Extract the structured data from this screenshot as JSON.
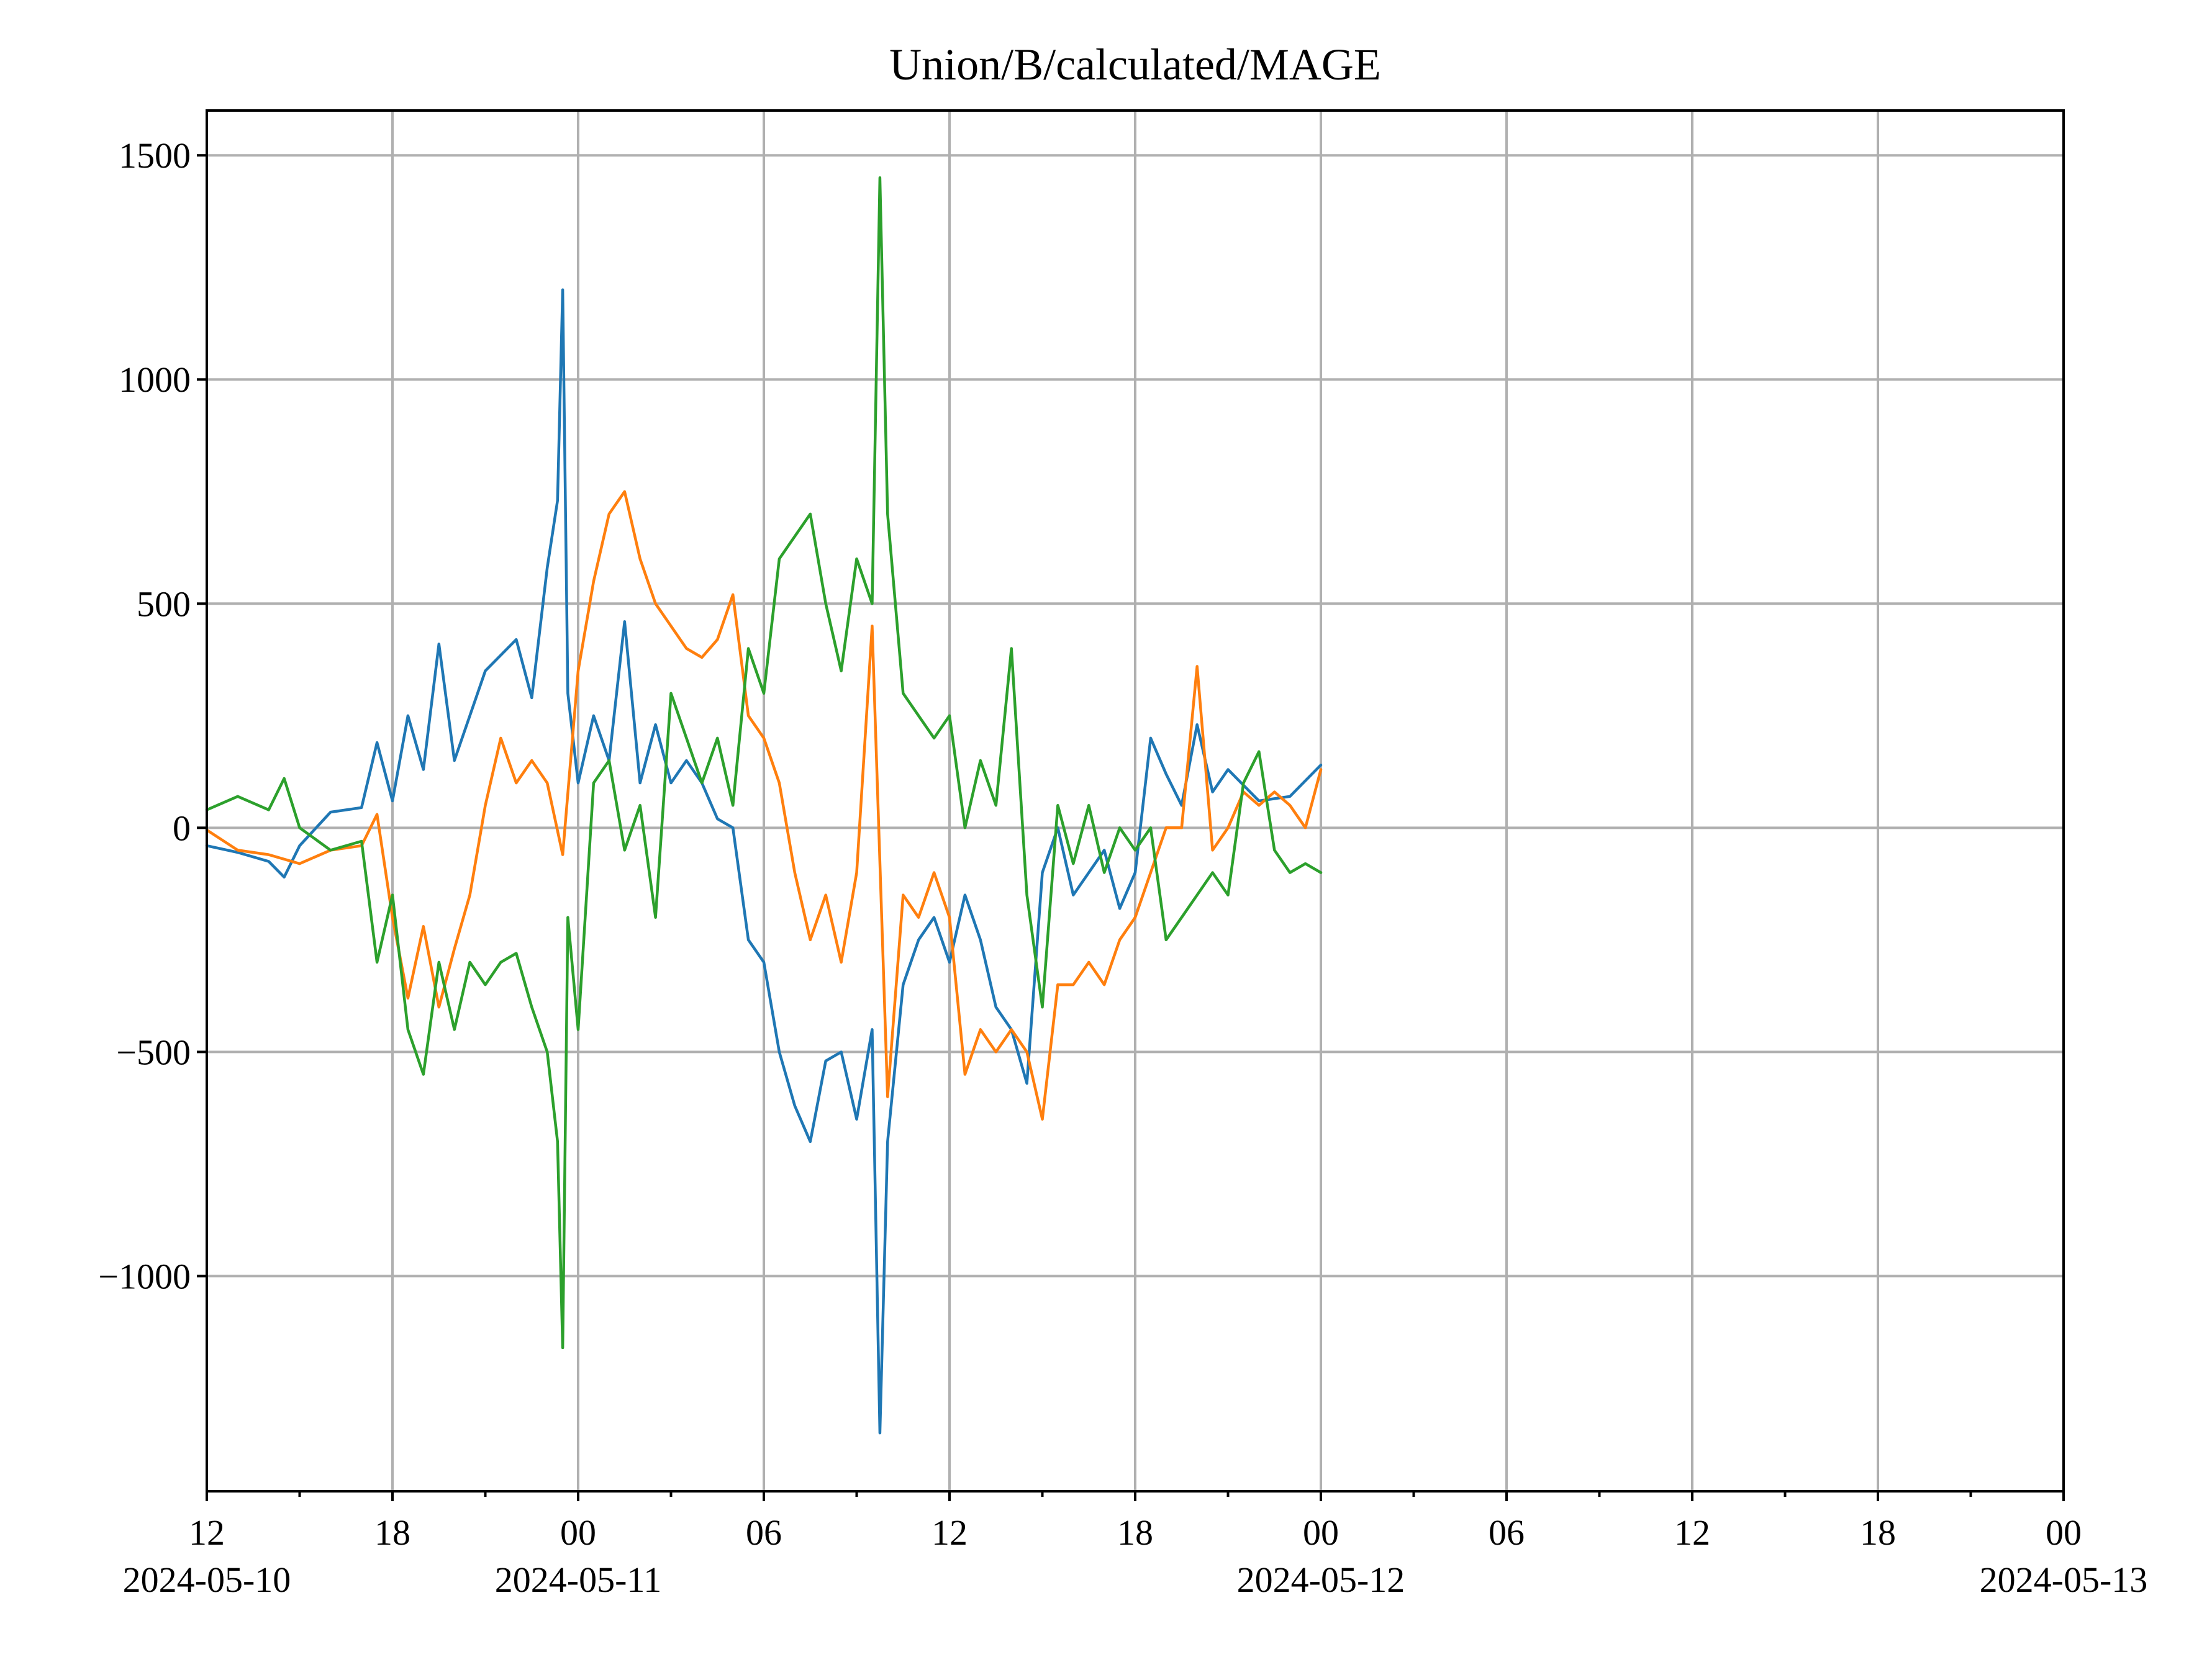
{
  "chart_data": {
    "type": "line",
    "title": "Union/B/calculated/MAGE",
    "xlabel": "",
    "ylabel": "",
    "xlim": [
      "2024-05-10 12:00",
      "2024-05-13 00:00"
    ],
    "ylim": [
      -1480,
      1600
    ],
    "grid": true,
    "x_ticks": [
      {
        "t": "2024-05-10 12:00",
        "label": "12",
        "date_label": "2024-05-10"
      },
      {
        "t": "2024-05-10 18:00",
        "label": "18",
        "date_label": ""
      },
      {
        "t": "2024-05-11 00:00",
        "label": "00",
        "date_label": "2024-05-11"
      },
      {
        "t": "2024-05-11 06:00",
        "label": "06",
        "date_label": ""
      },
      {
        "t": "2024-05-11 12:00",
        "label": "12",
        "date_label": ""
      },
      {
        "t": "2024-05-11 18:00",
        "label": "18",
        "date_label": ""
      },
      {
        "t": "2024-05-12 00:00",
        "label": "00",
        "date_label": "2024-05-12"
      },
      {
        "t": "2024-05-12 06:00",
        "label": "06",
        "date_label": ""
      },
      {
        "t": "2024-05-12 12:00",
        "label": "12",
        "date_label": ""
      },
      {
        "t": "2024-05-12 18:00",
        "label": "18",
        "date_label": ""
      },
      {
        "t": "2024-05-13 00:00",
        "label": "00",
        "date_label": "2024-05-13"
      }
    ],
    "x_minor_ticks": [
      "2024-05-10 15:00",
      "2024-05-10 21:00",
      "2024-05-11 03:00",
      "2024-05-11 09:00",
      "2024-05-11 15:00",
      "2024-05-11 21:00",
      "2024-05-12 03:00",
      "2024-05-12 09:00",
      "2024-05-12 15:00",
      "2024-05-12 21:00"
    ],
    "y_ticks": [
      {
        "v": 1500,
        "label": "1500"
      },
      {
        "v": 1000,
        "label": "1000"
      },
      {
        "v": 500,
        "label": "500"
      },
      {
        "v": 0,
        "label": "0"
      },
      {
        "v": -500,
        "label": "−500"
      },
      {
        "v": -1000,
        "label": "−1000"
      }
    ],
    "series": [
      {
        "color": "#1f77b4",
        "points": [
          [
            "2024-05-10 12:00",
            -40
          ],
          [
            "2024-05-10 13:00",
            -55
          ],
          [
            "2024-05-10 14:00",
            -75
          ],
          [
            "2024-05-10 14:30",
            -110
          ],
          [
            "2024-05-10 15:00",
            -40
          ],
          [
            "2024-05-10 16:00",
            35
          ],
          [
            "2024-05-10 17:00",
            45
          ],
          [
            "2024-05-10 17:30",
            190
          ],
          [
            "2024-05-10 18:00",
            60
          ],
          [
            "2024-05-10 18:30",
            250
          ],
          [
            "2024-05-10 19:00",
            130
          ],
          [
            "2024-05-10 19:30",
            410
          ],
          [
            "2024-05-10 20:00",
            150
          ],
          [
            "2024-05-10 20:30",
            250
          ],
          [
            "2024-05-10 21:00",
            350
          ],
          [
            "2024-05-10 22:00",
            420
          ],
          [
            "2024-05-10 22:30",
            290
          ],
          [
            "2024-05-10 23:00",
            580
          ],
          [
            "2024-05-10 23:20",
            730
          ],
          [
            "2024-05-10 23:30",
            1200
          ],
          [
            "2024-05-10 23:40",
            300
          ],
          [
            "2024-05-11 00:00",
            100
          ],
          [
            "2024-05-11 00:30",
            250
          ],
          [
            "2024-05-11 01:00",
            150
          ],
          [
            "2024-05-11 01:30",
            460
          ],
          [
            "2024-05-11 02:00",
            100
          ],
          [
            "2024-05-11 02:30",
            230
          ],
          [
            "2024-05-11 03:00",
            100
          ],
          [
            "2024-05-11 03:30",
            150
          ],
          [
            "2024-05-11 04:00",
            100
          ],
          [
            "2024-05-11 04:30",
            20
          ],
          [
            "2024-05-11 05:00",
            0
          ],
          [
            "2024-05-11 05:30",
            -250
          ],
          [
            "2024-05-11 06:00",
            -300
          ],
          [
            "2024-05-11 06:30",
            -500
          ],
          [
            "2024-05-11 07:00",
            -620
          ],
          [
            "2024-05-11 07:30",
            -700
          ],
          [
            "2024-05-11 08:00",
            -520
          ],
          [
            "2024-05-11 08:30",
            -500
          ],
          [
            "2024-05-11 09:00",
            -650
          ],
          [
            "2024-05-11 09:30",
            -450
          ],
          [
            "2024-05-11 09:45",
            -1350
          ],
          [
            "2024-05-11 10:00",
            -700
          ],
          [
            "2024-05-11 10:30",
            -350
          ],
          [
            "2024-05-11 11:00",
            -250
          ],
          [
            "2024-05-11 11:30",
            -200
          ],
          [
            "2024-05-11 12:00",
            -300
          ],
          [
            "2024-05-11 12:30",
            -150
          ],
          [
            "2024-05-11 13:00",
            -250
          ],
          [
            "2024-05-11 13:30",
            -400
          ],
          [
            "2024-05-11 14:00",
            -450
          ],
          [
            "2024-05-11 14:30",
            -570
          ],
          [
            "2024-05-11 15:00",
            -100
          ],
          [
            "2024-05-11 15:30",
            0
          ],
          [
            "2024-05-11 16:00",
            -150
          ],
          [
            "2024-05-11 16:30",
            -100
          ],
          [
            "2024-05-11 17:00",
            -50
          ],
          [
            "2024-05-11 17:30",
            -180
          ],
          [
            "2024-05-11 18:00",
            -100
          ],
          [
            "2024-05-11 18:30",
            200
          ],
          [
            "2024-05-11 19:00",
            120
          ],
          [
            "2024-05-11 19:30",
            50
          ],
          [
            "2024-05-11 20:00",
            230
          ],
          [
            "2024-05-11 20:30",
            80
          ],
          [
            "2024-05-11 21:00",
            130
          ],
          [
            "2024-05-11 22:00",
            60
          ],
          [
            "2024-05-11 23:00",
            70
          ],
          [
            "2024-05-12 00:00",
            140
          ]
        ]
      },
      {
        "color": "#ff7f0e",
        "points": [
          [
            "2024-05-10 12:00",
            -5
          ],
          [
            "2024-05-10 13:00",
            -50
          ],
          [
            "2024-05-10 14:00",
            -60
          ],
          [
            "2024-05-10 15:00",
            -80
          ],
          [
            "2024-05-10 16:00",
            -50
          ],
          [
            "2024-05-10 17:00",
            -40
          ],
          [
            "2024-05-10 17:30",
            30
          ],
          [
            "2024-05-10 18:00",
            -200
          ],
          [
            "2024-05-10 18:30",
            -380
          ],
          [
            "2024-05-10 19:00",
            -220
          ],
          [
            "2024-05-10 19:30",
            -400
          ],
          [
            "2024-05-10 20:00",
            -270
          ],
          [
            "2024-05-10 20:30",
            -150
          ],
          [
            "2024-05-10 21:00",
            50
          ],
          [
            "2024-05-10 21:30",
            200
          ],
          [
            "2024-05-10 22:00",
            100
          ],
          [
            "2024-05-10 22:30",
            150
          ],
          [
            "2024-05-10 23:00",
            100
          ],
          [
            "2024-05-10 23:30",
            -60
          ],
          [
            "2024-05-11 00:00",
            350
          ],
          [
            "2024-05-11 00:30",
            550
          ],
          [
            "2024-05-11 01:00",
            700
          ],
          [
            "2024-05-11 01:30",
            750
          ],
          [
            "2024-05-11 02:00",
            600
          ],
          [
            "2024-05-11 02:30",
            500
          ],
          [
            "2024-05-11 03:00",
            450
          ],
          [
            "2024-05-11 03:30",
            400
          ],
          [
            "2024-05-11 04:00",
            380
          ],
          [
            "2024-05-11 04:30",
            420
          ],
          [
            "2024-05-11 05:00",
            520
          ],
          [
            "2024-05-11 05:30",
            250
          ],
          [
            "2024-05-11 06:00",
            200
          ],
          [
            "2024-05-11 06:30",
            100
          ],
          [
            "2024-05-11 07:00",
            -100
          ],
          [
            "2024-05-11 07:30",
            -250
          ],
          [
            "2024-05-11 08:00",
            -150
          ],
          [
            "2024-05-11 08:30",
            -300
          ],
          [
            "2024-05-11 09:00",
            -100
          ],
          [
            "2024-05-11 09:30",
            450
          ],
          [
            "2024-05-11 10:00",
            -600
          ],
          [
            "2024-05-11 10:30",
            -150
          ],
          [
            "2024-05-11 11:00",
            -200
          ],
          [
            "2024-05-11 11:30",
            -100
          ],
          [
            "2024-05-11 12:00",
            -200
          ],
          [
            "2024-05-11 12:30",
            -550
          ],
          [
            "2024-05-11 13:00",
            -450
          ],
          [
            "2024-05-11 13:30",
            -500
          ],
          [
            "2024-05-11 14:00",
            -450
          ],
          [
            "2024-05-11 14:30",
            -500
          ],
          [
            "2024-05-11 15:00",
            -650
          ],
          [
            "2024-05-11 15:30",
            -350
          ],
          [
            "2024-05-11 16:00",
            -350
          ],
          [
            "2024-05-11 16:30",
            -300
          ],
          [
            "2024-05-11 17:00",
            -350
          ],
          [
            "2024-05-11 17:30",
            -250
          ],
          [
            "2024-05-11 18:00",
            -200
          ],
          [
            "2024-05-11 18:30",
            -100
          ],
          [
            "2024-05-11 19:00",
            0
          ],
          [
            "2024-05-11 19:30",
            0
          ],
          [
            "2024-05-11 20:00",
            360
          ],
          [
            "2024-05-11 20:30",
            -50
          ],
          [
            "2024-05-11 21:00",
            0
          ],
          [
            "2024-05-11 21:30",
            80
          ],
          [
            "2024-05-11 22:00",
            50
          ],
          [
            "2024-05-11 22:30",
            80
          ],
          [
            "2024-05-11 23:00",
            50
          ],
          [
            "2024-05-11 23:30",
            0
          ],
          [
            "2024-05-12 00:00",
            130
          ]
        ]
      },
      {
        "color": "#2ca02c",
        "points": [
          [
            "2024-05-10 12:00",
            40
          ],
          [
            "2024-05-10 13:00",
            70
          ],
          [
            "2024-05-10 14:00",
            40
          ],
          [
            "2024-05-10 14:30",
            110
          ],
          [
            "2024-05-10 15:00",
            0
          ],
          [
            "2024-05-10 16:00",
            -50
          ],
          [
            "2024-05-10 17:00",
            -30
          ],
          [
            "2024-05-10 17:30",
            -300
          ],
          [
            "2024-05-10 18:00",
            -150
          ],
          [
            "2024-05-10 18:30",
            -450
          ],
          [
            "2024-05-10 19:00",
            -550
          ],
          [
            "2024-05-10 19:30",
            -300
          ],
          [
            "2024-05-10 20:00",
            -450
          ],
          [
            "2024-05-10 20:30",
            -300
          ],
          [
            "2024-05-10 21:00",
            -350
          ],
          [
            "2024-05-10 21:30",
            -300
          ],
          [
            "2024-05-10 22:00",
            -280
          ],
          [
            "2024-05-10 22:30",
            -400
          ],
          [
            "2024-05-10 23:00",
            -500
          ],
          [
            "2024-05-10 23:20",
            -700
          ],
          [
            "2024-05-10 23:30",
            -1160
          ],
          [
            "2024-05-10 23:40",
            -200
          ],
          [
            "2024-05-11 00:00",
            -450
          ],
          [
            "2024-05-11 00:30",
            100
          ],
          [
            "2024-05-11 01:00",
            150
          ],
          [
            "2024-05-11 01:30",
            -50
          ],
          [
            "2024-05-11 02:00",
            50
          ],
          [
            "2024-05-11 02:30",
            -200
          ],
          [
            "2024-05-11 03:00",
            300
          ],
          [
            "2024-05-11 03:30",
            200
          ],
          [
            "2024-05-11 04:00",
            100
          ],
          [
            "2024-05-11 04:30",
            200
          ],
          [
            "2024-05-11 05:00",
            50
          ],
          [
            "2024-05-11 05:30",
            400
          ],
          [
            "2024-05-11 06:00",
            300
          ],
          [
            "2024-05-11 06:30",
            600
          ],
          [
            "2024-05-11 07:00",
            650
          ],
          [
            "2024-05-11 07:30",
            700
          ],
          [
            "2024-05-11 08:00",
            500
          ],
          [
            "2024-05-11 08:30",
            350
          ],
          [
            "2024-05-11 09:00",
            600
          ],
          [
            "2024-05-11 09:30",
            500
          ],
          [
            "2024-05-11 09:45",
            1450
          ],
          [
            "2024-05-11 10:00",
            700
          ],
          [
            "2024-05-11 10:30",
            300
          ],
          [
            "2024-05-11 11:00",
            250
          ],
          [
            "2024-05-11 11:30",
            200
          ],
          [
            "2024-05-11 12:00",
            250
          ],
          [
            "2024-05-11 12:30",
            0
          ],
          [
            "2024-05-11 13:00",
            150
          ],
          [
            "2024-05-11 13:30",
            50
          ],
          [
            "2024-05-11 14:00",
            400
          ],
          [
            "2024-05-11 14:30",
            -150
          ],
          [
            "2024-05-11 15:00",
            -400
          ],
          [
            "2024-05-11 15:30",
            50
          ],
          [
            "2024-05-11 16:00",
            -80
          ],
          [
            "2024-05-11 16:30",
            50
          ],
          [
            "2024-05-11 17:00",
            -100
          ],
          [
            "2024-05-11 17:30",
            0
          ],
          [
            "2024-05-11 18:00",
            -50
          ],
          [
            "2024-05-11 18:30",
            0
          ],
          [
            "2024-05-11 19:00",
            -250
          ],
          [
            "2024-05-11 19:30",
            -200
          ],
          [
            "2024-05-11 20:00",
            -150
          ],
          [
            "2024-05-11 20:30",
            -100
          ],
          [
            "2024-05-11 21:00",
            -150
          ],
          [
            "2024-05-11 21:30",
            100
          ],
          [
            "2024-05-11 22:00",
            170
          ],
          [
            "2024-05-11 22:30",
            -50
          ],
          [
            "2024-05-11 23:00",
            -100
          ],
          [
            "2024-05-11 23:30",
            -80
          ],
          [
            "2024-05-12 00:00",
            -100
          ]
        ]
      }
    ]
  }
}
